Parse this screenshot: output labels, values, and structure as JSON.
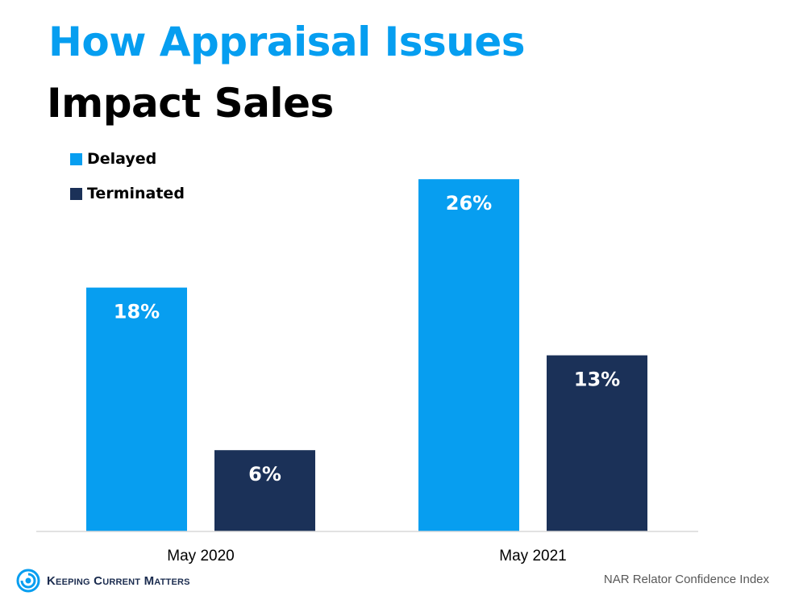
{
  "title_line1": "How Appraisal Issues",
  "title_line2": "Impact Sales",
  "colors": {
    "delayed": "#079ef0",
    "terminated": "#1b3158",
    "title_accent": "#069ef0"
  },
  "chart_data": {
    "type": "bar",
    "title": "How Appraisal Issues Impact Sales",
    "categories": [
      "May 2020",
      "May 2021"
    ],
    "series": [
      {
        "name": "Delayed",
        "values": [
          18,
          26
        ],
        "labels": [
          "18%",
          "26%"
        ]
      },
      {
        "name": "Terminated",
        "values": [
          6,
          13
        ],
        "labels": [
          "6%",
          "13%"
        ]
      }
    ],
    "ylim": [
      0,
      30
    ],
    "legend": "top-left",
    "grid": false
  },
  "footer": {
    "brand": "Keeping Current Matters",
    "source": "NAR Relator Confidence Index"
  },
  "icons": {
    "brand_logo": "swirl-logo-icon"
  }
}
